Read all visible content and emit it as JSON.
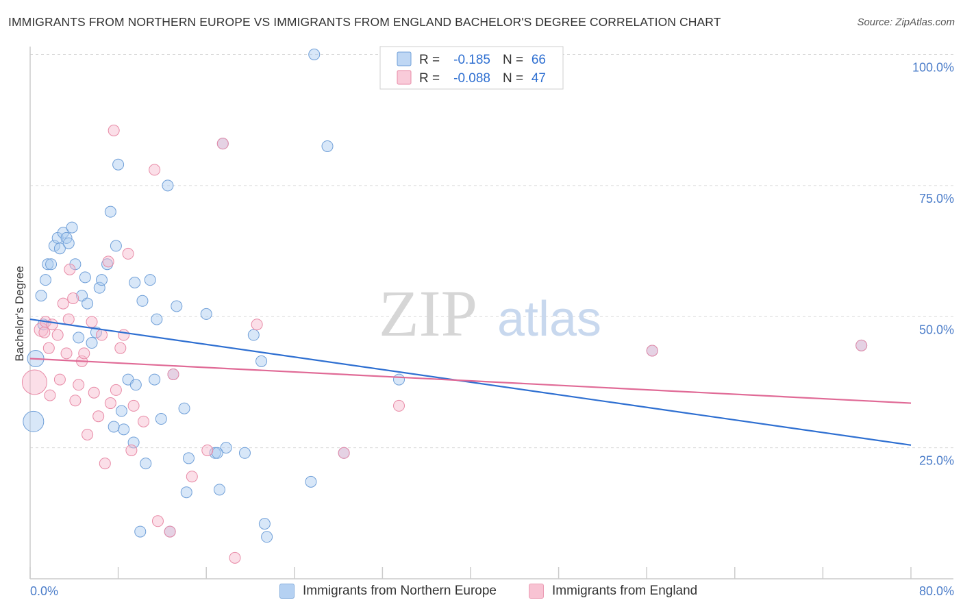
{
  "title": "IMMIGRANTS FROM NORTHERN EUROPE VS IMMIGRANTS FROM ENGLAND BACHELOR'S DEGREE CORRELATION CHART",
  "source": "Source: ZipAtlas.com",
  "watermark": {
    "zip": "ZIP",
    "atlas": "atlas"
  },
  "colors": {
    "blue_fill": "#a9c9f0",
    "blue_stroke": "#6f9fd8",
    "blue_line": "#2e6fd1",
    "pink_fill": "#f7b9cc",
    "pink_stroke": "#e88aa6",
    "pink_line": "#e06a96",
    "axis_label": "#4a7cc9",
    "grid": "#d9d9d9"
  },
  "legend": {
    "rows": [
      {
        "r_label": "R =",
        "r_value": "-0.185",
        "n_label": "N =",
        "n_value": "66"
      },
      {
        "r_label": "R =",
        "r_value": "-0.088",
        "n_label": "N =",
        "n_value": "47"
      }
    ]
  },
  "bottom_legend": {
    "series1": "Immigrants from Northern Europe",
    "series2": "Immigrants from England"
  },
  "chart_data": {
    "type": "scatter",
    "title": "IMMIGRANTS FROM NORTHERN EUROPE VS IMMIGRANTS FROM ENGLAND BACHELOR'S DEGREE CORRELATION CHART",
    "xlabel": "",
    "ylabel": "Bachelor's Degree",
    "xlim": [
      0,
      80
    ],
    "ylim": [
      0,
      102
    ],
    "x_tick_labels": [
      "0.0%",
      "80.0%"
    ],
    "y_ticks": [
      25,
      50,
      75,
      100
    ],
    "y_tick_labels": [
      "25.0%",
      "50.0%",
      "75.0%",
      "100.0%"
    ],
    "grid": true,
    "series": [
      {
        "name": "Immigrants from Northern Europe",
        "R": -0.185,
        "N": 66,
        "trend": {
          "x": [
            0,
            80
          ],
          "y": [
            49.5,
            25.5
          ]
        },
        "points": [
          [
            0.5,
            42,
            12
          ],
          [
            0.3,
            30,
            15
          ],
          [
            1.2,
            48.5,
            8
          ],
          [
            1.0,
            54,
            8
          ],
          [
            1.4,
            57,
            8
          ],
          [
            1.6,
            60,
            8
          ],
          [
            1.9,
            60,
            8
          ],
          [
            2.2,
            63.5,
            8
          ],
          [
            2.5,
            65,
            8
          ],
          [
            2.7,
            63,
            8
          ],
          [
            3.0,
            66,
            8
          ],
          [
            3.3,
            65,
            8
          ],
          [
            3.5,
            64,
            8
          ],
          [
            3.8,
            67,
            8
          ],
          [
            4.1,
            60,
            8
          ],
          [
            4.4,
            46,
            8
          ],
          [
            4.7,
            54,
            8
          ],
          [
            5.0,
            57.5,
            8
          ],
          [
            5.2,
            52.5,
            8
          ],
          [
            5.6,
            45,
            8
          ],
          [
            6.0,
            47,
            8
          ],
          [
            6.3,
            55.5,
            8
          ],
          [
            6.5,
            57,
            8
          ],
          [
            7.0,
            60,
            8
          ],
          [
            7.3,
            70,
            8
          ],
          [
            7.6,
            29,
            8
          ],
          [
            7.8,
            63.5,
            8
          ],
          [
            8.0,
            79,
            8
          ],
          [
            8.3,
            32,
            8
          ],
          [
            8.5,
            28.5,
            8
          ],
          [
            8.9,
            38,
            8
          ],
          [
            9.5,
            56.5,
            8
          ],
          [
            9.4,
            26,
            8
          ],
          [
            9.6,
            37,
            8
          ],
          [
            10.2,
            53,
            8
          ],
          [
            10.5,
            22,
            8
          ],
          [
            10.9,
            57,
            8
          ],
          [
            11.3,
            38,
            8
          ],
          [
            11.5,
            49.5,
            8
          ],
          [
            11.9,
            30.5,
            8
          ],
          [
            12.5,
            75,
            8
          ],
          [
            13.3,
            52,
            8
          ],
          [
            14.0,
            32.5,
            8
          ],
          [
            14.2,
            16.5,
            8
          ],
          [
            14.4,
            23,
            8
          ],
          [
            16.0,
            50.5,
            8
          ],
          [
            16.8,
            24,
            8
          ],
          [
            17.2,
            17,
            8
          ],
          [
            17.5,
            83,
            8
          ],
          [
            17.8,
            25,
            8
          ],
          [
            19.5,
            24,
            8
          ],
          [
            20.3,
            46.5,
            8
          ],
          [
            21.0,
            41.5,
            8
          ],
          [
            21.3,
            10.5,
            8
          ],
          [
            21.5,
            8,
            8
          ],
          [
            25.8,
            100,
            8
          ],
          [
            27.0,
            82.5,
            8
          ],
          [
            25.5,
            18.5,
            8
          ],
          [
            33.5,
            38,
            8
          ],
          [
            28.5,
            24,
            8
          ],
          [
            10.0,
            9,
            8
          ],
          [
            12.7,
            9,
            8
          ],
          [
            13.0,
            39,
            8
          ],
          [
            17.0,
            24,
            8
          ],
          [
            56.5,
            43.5,
            8
          ],
          [
            75.5,
            44.5,
            8
          ]
        ]
      },
      {
        "name": "Immigrants from England",
        "R": -0.088,
        "N": 47,
        "trend": {
          "x": [
            0,
            80
          ],
          "y": [
            42,
            33.5
          ]
        },
        "points": [
          [
            0.4,
            37.5,
            18
          ],
          [
            1.0,
            47.5,
            10
          ],
          [
            1.3,
            47,
            8
          ],
          [
            1.4,
            49,
            8
          ],
          [
            1.7,
            44,
            8
          ],
          [
            1.8,
            35,
            8
          ],
          [
            2.0,
            48.5,
            8
          ],
          [
            2.5,
            46.5,
            8
          ],
          [
            2.7,
            38,
            8
          ],
          [
            3.0,
            52.5,
            8
          ],
          [
            3.3,
            43,
            8
          ],
          [
            3.6,
            59,
            8
          ],
          [
            3.9,
            53.5,
            8
          ],
          [
            4.1,
            34,
            8
          ],
          [
            4.4,
            37,
            8
          ],
          [
            4.7,
            41.5,
            8
          ],
          [
            4.9,
            43,
            8
          ],
          [
            5.2,
            27.5,
            8
          ],
          [
            5.6,
            49,
            8
          ],
          [
            5.8,
            35.5,
            8
          ],
          [
            6.2,
            31,
            8
          ],
          [
            6.5,
            46.5,
            8
          ],
          [
            6.8,
            22,
            8
          ],
          [
            7.1,
            60.5,
            8
          ],
          [
            7.3,
            33.5,
            8
          ],
          [
            7.6,
            85.5,
            8
          ],
          [
            7.8,
            36,
            8
          ],
          [
            8.2,
            44,
            8
          ],
          [
            8.5,
            46.5,
            8
          ],
          [
            8.9,
            62,
            8
          ],
          [
            9.2,
            24.5,
            8
          ],
          [
            9.4,
            33,
            8
          ],
          [
            10.3,
            30,
            8
          ],
          [
            11.3,
            78,
            8
          ],
          [
            11.6,
            11,
            8
          ],
          [
            12.7,
            9,
            8
          ],
          [
            13.0,
            39,
            8
          ],
          [
            14.7,
            19.5,
            8
          ],
          [
            16.1,
            24.5,
            8
          ],
          [
            18.6,
            4,
            8
          ],
          [
            20.6,
            48.5,
            8
          ],
          [
            17.5,
            83,
            8
          ],
          [
            28.5,
            24,
            8
          ],
          [
            33.5,
            33,
            8
          ],
          [
            56.5,
            43.5,
            8
          ],
          [
            75.5,
            44.5,
            8
          ],
          [
            3.5,
            49.5,
            8
          ]
        ]
      }
    ]
  }
}
